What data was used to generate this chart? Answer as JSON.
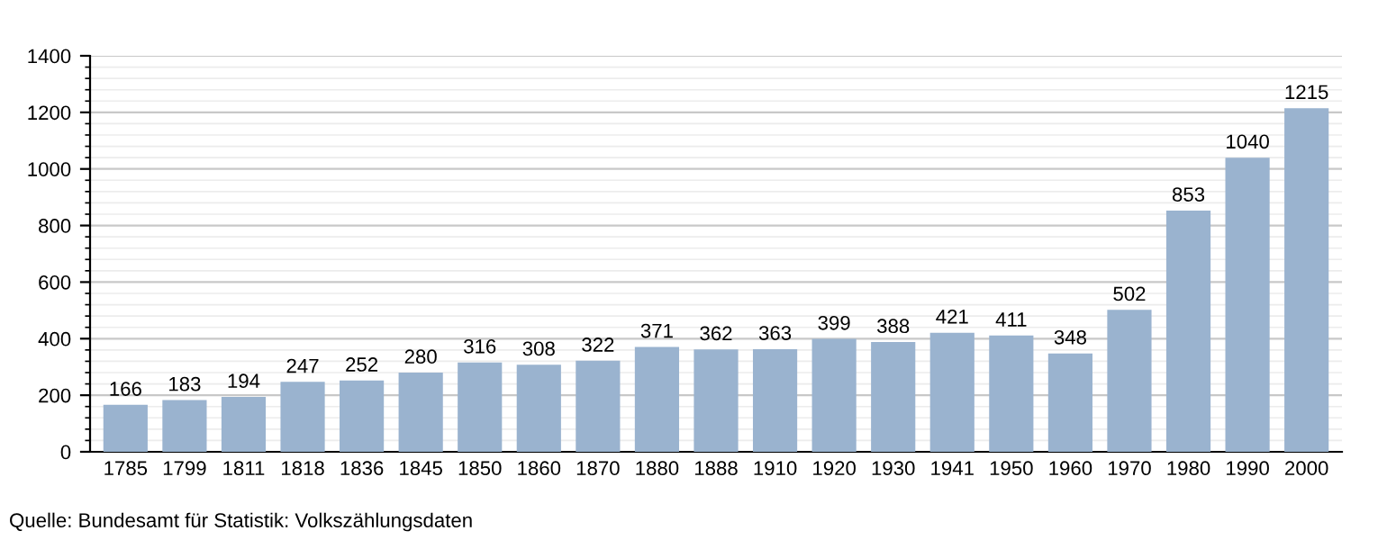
{
  "chart_data": {
    "type": "bar",
    "categories": [
      "1785",
      "1799",
      "1811",
      "1818",
      "1836",
      "1845",
      "1850",
      "1860",
      "1870",
      "1880",
      "1888",
      "1910",
      "1920",
      "1930",
      "1941",
      "1950",
      "1960",
      "1970",
      "1980",
      "1990",
      "2000"
    ],
    "values": [
      166,
      183,
      194,
      247,
      252,
      280,
      316,
      308,
      322,
      371,
      362,
      363,
      399,
      388,
      421,
      411,
      348,
      502,
      853,
      1040,
      1215
    ],
    "color": "#9ab3cf",
    "ylim": [
      0,
      1400
    ],
    "yticks": [
      0,
      200,
      400,
      600,
      800,
      1000,
      1200,
      1400
    ],
    "grid": "y",
    "data_labels": true,
    "annotations": [
      "Quelle: Bundesamt für Statistik: Volkszählungsdaten"
    ]
  }
}
